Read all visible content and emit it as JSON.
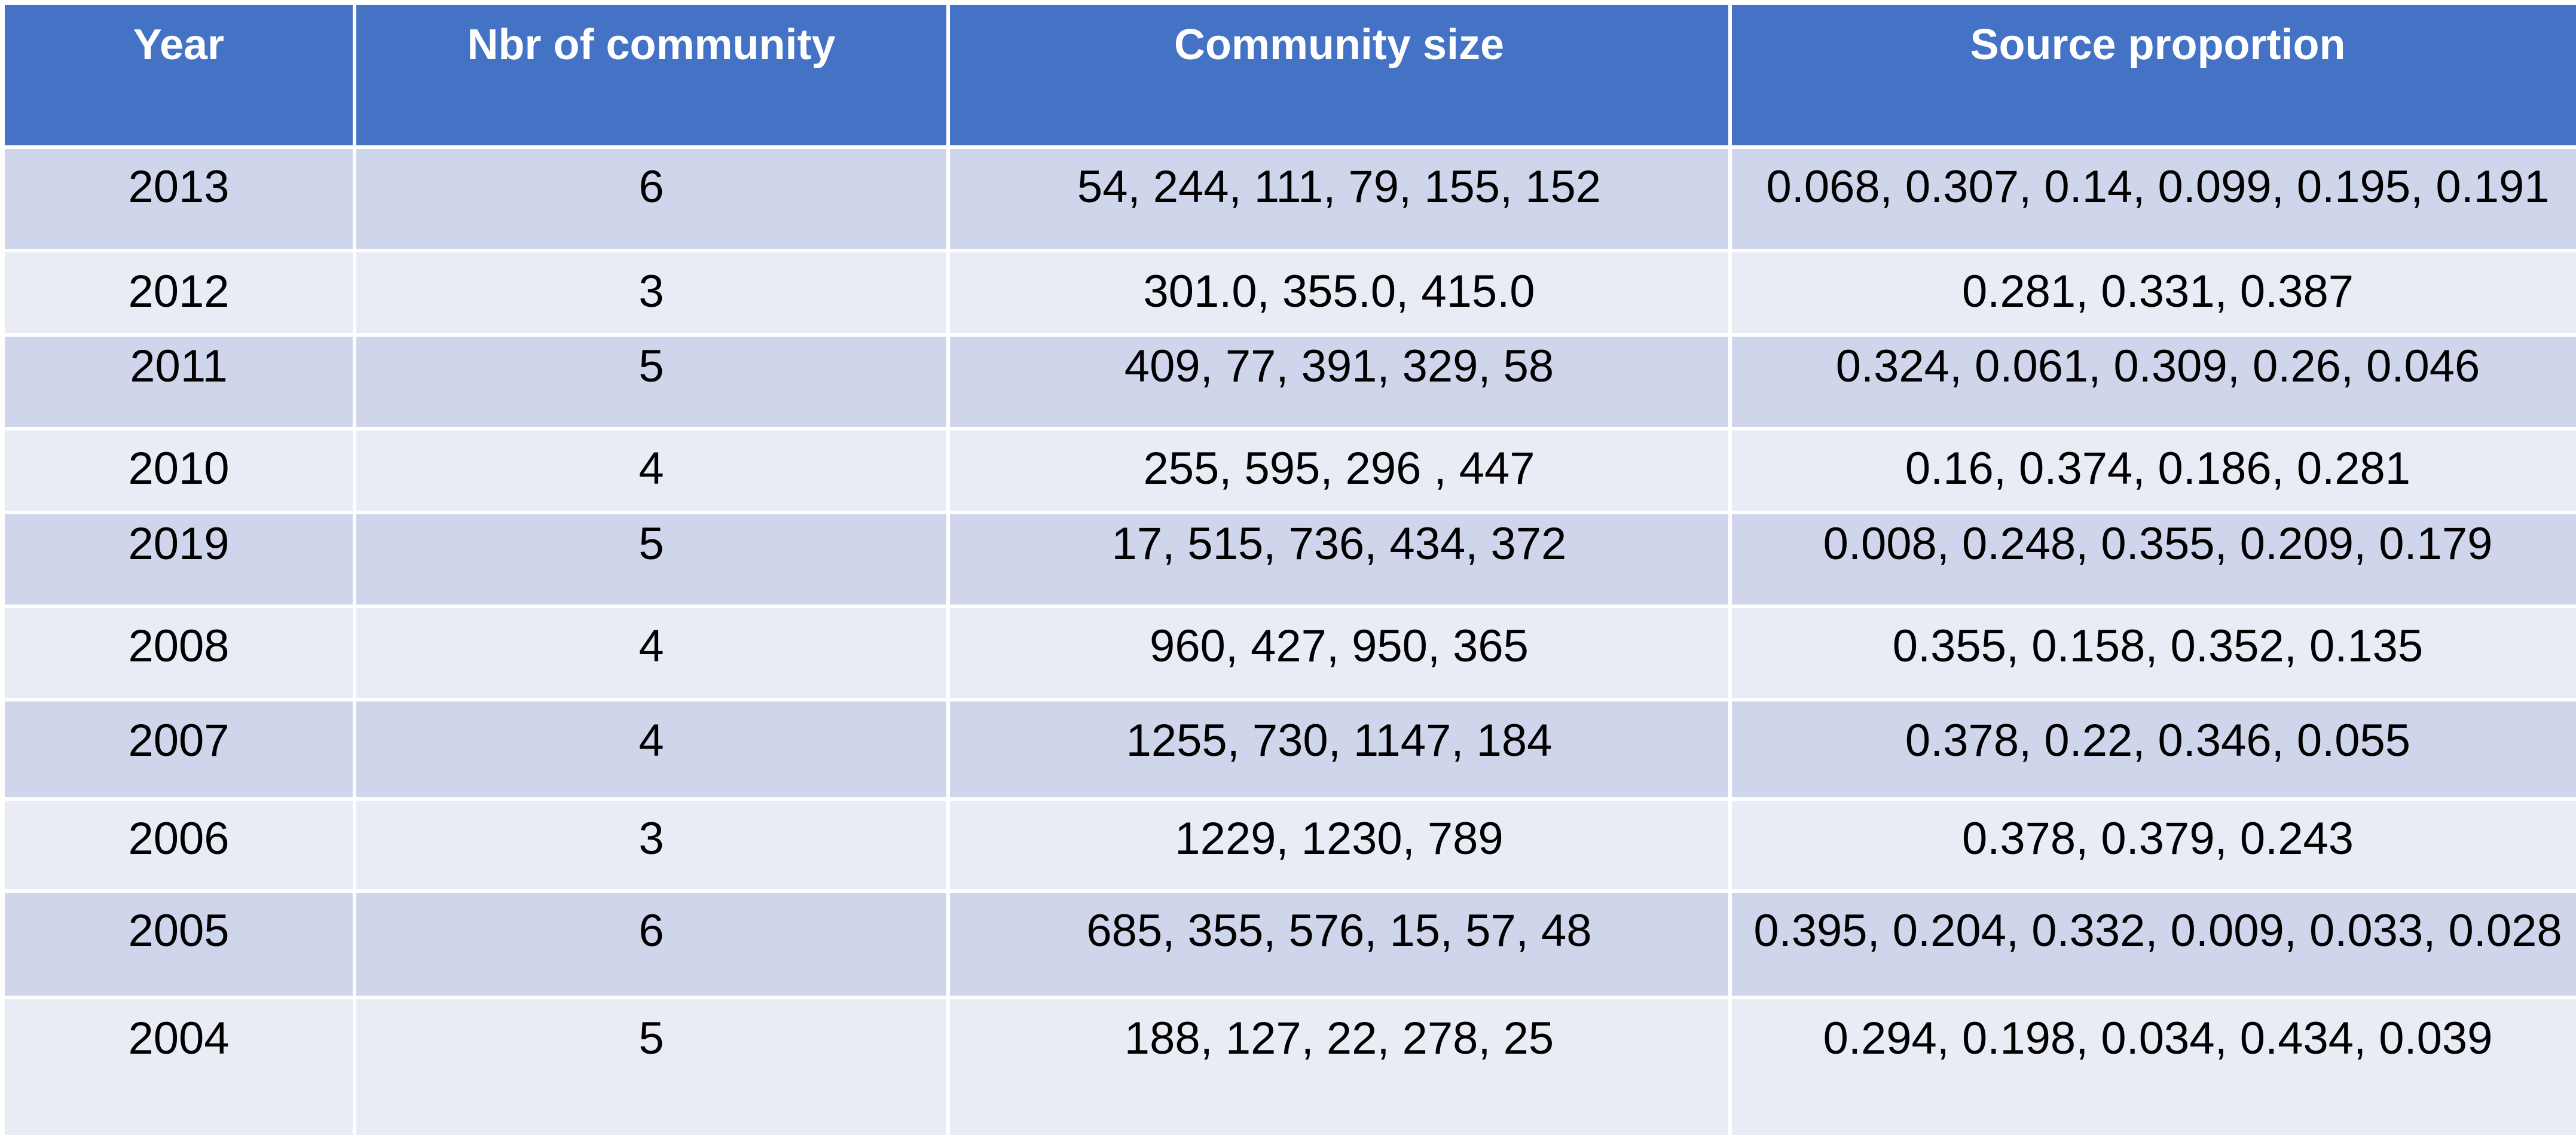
{
  "table": {
    "headers": [
      "Year",
      "Nbr of community",
      "Community size",
      "Source proportion"
    ],
    "rows": [
      [
        "2013",
        "6",
        "54, 244, 111, 79, 155, 152",
        "0.068,  0.307, 0.14, 0.099, 0.195, 0.191"
      ],
      [
        "2012",
        "3",
        "301.0, 355.0, 415.0",
        "0.281, 0.331, 0.387"
      ],
      [
        "2011",
        "5",
        "409, 77, 391, 329, 58",
        "0.324, 0.061, 0.309, 0.26, 0.046"
      ],
      [
        "2010",
        "4",
        "255, 595, 296 , 447",
        "0.16, 0.374, 0.186, 0.281"
      ],
      [
        "2019",
        "5",
        "17, 515, 736, 434, 372",
        "0.008, 0.248, 0.355, 0.209, 0.179"
      ],
      [
        "2008",
        "4",
        "960, 427, 950, 365",
        "0.355, 0.158, 0.352, 0.135"
      ],
      [
        "2007",
        "4",
        "1255, 730, 1147, 184",
        "0.378, 0.22, 0.346, 0.055"
      ],
      [
        "2006",
        "3",
        "1229, 1230, 789",
        "0.378, 0.379, 0.243"
      ],
      [
        "2005",
        "6",
        "685, 355, 576, 15, 57, 48",
        "0.395, 0.204, 0.332, 0.009, 0.033, 0.028"
      ],
      [
        "2004",
        "5",
        "188, 127, 22, 278, 25",
        "0.294, 0.198, 0.034, 0.434, 0.039"
      ]
    ]
  },
  "colors": {
    "header_bg": "#4472C4",
    "header_text": "#FFFFFF",
    "row_band_dark": "#CFD5EA",
    "row_band_light": "#E9EBF5"
  }
}
